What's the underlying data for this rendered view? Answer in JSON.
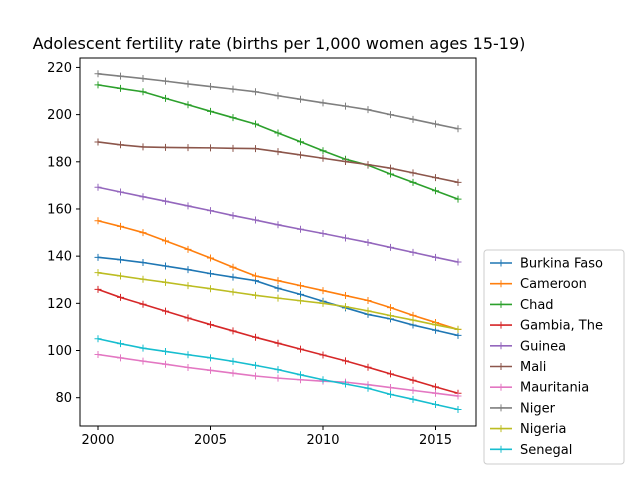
{
  "chart_data": {
    "type": "line",
    "title": "Adolescent fertility rate (births per 1,000 women ages 15-19)",
    "xlabel": "",
    "ylabel": "",
    "xlim": [
      1999.2,
      2016.8
    ],
    "ylim": [
      68,
      224
    ],
    "xticks": [
      2000,
      2005,
      2010,
      2015
    ],
    "yticks": [
      80,
      100,
      120,
      140,
      160,
      180,
      200,
      220
    ],
    "grid": false,
    "legend_position": "lower-right-outside",
    "marker": "+",
    "x": [
      2000,
      2001,
      2002,
      2003,
      2004,
      2005,
      2006,
      2007,
      2008,
      2009,
      2010,
      2011,
      2012,
      2013,
      2014,
      2015,
      2016
    ],
    "series": [
      {
        "name": "Burkina Faso",
        "color": "#1f77b4",
        "values": [
          139.5,
          138.5,
          137.3,
          135.8,
          134.3,
          132.6,
          131.1,
          129.6,
          126.4,
          123.8,
          120.9,
          118.1,
          115.3,
          113.4,
          110.8,
          108.6,
          106.4
        ]
      },
      {
        "name": "Cameroon",
        "color": "#ff7f0e",
        "values": [
          155.0,
          152.6,
          150.0,
          146.5,
          142.9,
          139.2,
          135.3,
          131.6,
          129.6,
          127.5,
          125.4,
          123.3,
          121.2,
          118.2,
          114.9,
          111.9,
          108.9
        ]
      },
      {
        "name": "Chad",
        "color": "#2ca02c",
        "values": [
          212.6,
          211.1,
          209.7,
          206.9,
          204.2,
          201.4,
          198.7,
          196.0,
          192.2,
          188.5,
          184.7,
          181.1,
          178.6,
          174.8,
          171.3,
          167.7,
          164.2
        ]
      },
      {
        "name": "Gambia, The",
        "color": "#d62728",
        "values": [
          125.9,
          122.5,
          119.6,
          116.7,
          113.8,
          111.0,
          108.3,
          105.6,
          103.1,
          100.6,
          98.1,
          95.6,
          92.9,
          90.1,
          87.4,
          84.6,
          81.9
        ]
      },
      {
        "name": "Guinea",
        "color": "#9467bd",
        "values": [
          169.2,
          167.2,
          165.2,
          163.3,
          161.3,
          159.3,
          157.2,
          155.3,
          153.3,
          151.4,
          149.6,
          147.7,
          145.8,
          143.7,
          141.6,
          139.5,
          137.5
        ]
      },
      {
        "name": "Mali",
        "color": "#8c564b",
        "values": [
          188.4,
          187.2,
          186.3,
          186.1,
          186.0,
          185.9,
          185.7,
          185.6,
          184.3,
          182.9,
          181.5,
          180.1,
          178.8,
          177.3,
          175.3,
          173.3,
          171.3
        ]
      },
      {
        "name": "Mauritania",
        "color": "#e377c2",
        "values": [
          98.3,
          96.9,
          95.5,
          94.2,
          92.8,
          91.6,
          90.4,
          89.2,
          88.3,
          87.6,
          87.0,
          86.6,
          85.5,
          84.3,
          83.1,
          81.9,
          80.7
        ]
      },
      {
        "name": "Niger",
        "color": "#7f7f7f",
        "values": [
          217.3,
          216.3,
          215.3,
          214.2,
          213.0,
          211.9,
          210.8,
          209.7,
          208.0,
          206.5,
          205.0,
          203.6,
          202.1,
          200.0,
          198.0,
          196.0,
          194.0
        ]
      },
      {
        "name": "Nigeria",
        "color": "#bcbd22",
        "values": [
          133.0,
          131.6,
          130.2,
          128.9,
          127.5,
          126.2,
          124.8,
          123.4,
          122.2,
          121.1,
          120.0,
          118.6,
          116.8,
          114.8,
          112.9,
          110.9,
          109.0
        ]
      },
      {
        "name": "Senegal",
        "color": "#17becf",
        "values": [
          105.0,
          102.9,
          101.0,
          99.6,
          98.2,
          96.9,
          95.4,
          93.7,
          91.9,
          89.7,
          87.6,
          85.8,
          84.0,
          81.4,
          79.3,
          77.1,
          75.0
        ]
      }
    ]
  }
}
